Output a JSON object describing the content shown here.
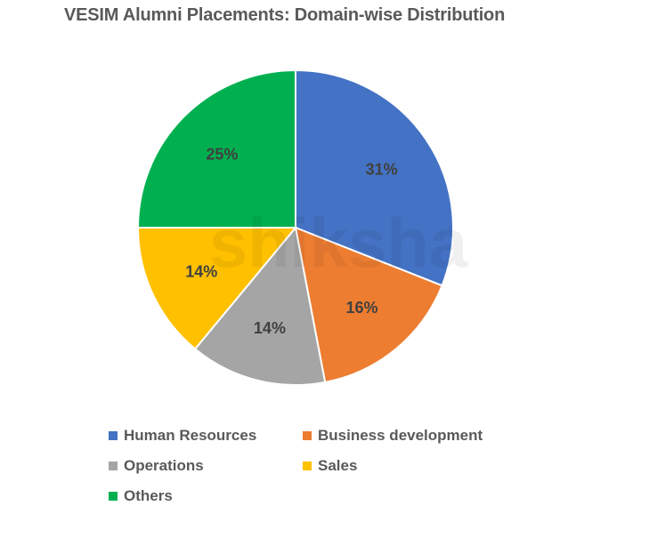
{
  "title": "VESIM Alumni Placements: Domain-wise Distribution",
  "watermark": "shiksha",
  "chart_data": {
    "type": "pie",
    "title": "VESIM Alumni Placements: Domain-wise Distribution",
    "categories": [
      "Human Resources",
      "Business development",
      "Operations",
      "Sales",
      "Others"
    ],
    "values": [
      31,
      16,
      14,
      14,
      25
    ],
    "labels": [
      "31%",
      "16%",
      "14%",
      "14%",
      "25%"
    ],
    "colors": [
      "#4472C4",
      "#ED7D31",
      "#A5A5A5",
      "#FFC000",
      "#00B050"
    ],
    "start_angle": "12 o'clock, clockwise",
    "legend_position": "bottom"
  },
  "legend": [
    {
      "label": "Human Resources",
      "color": "#4472C4"
    },
    {
      "label": "Business development",
      "color": "#ED7D31"
    },
    {
      "label": "Operations",
      "color": "#A5A5A5"
    },
    {
      "label": "Sales",
      "color": "#FFC000"
    },
    {
      "label": "Others",
      "color": "#00B050"
    }
  ]
}
